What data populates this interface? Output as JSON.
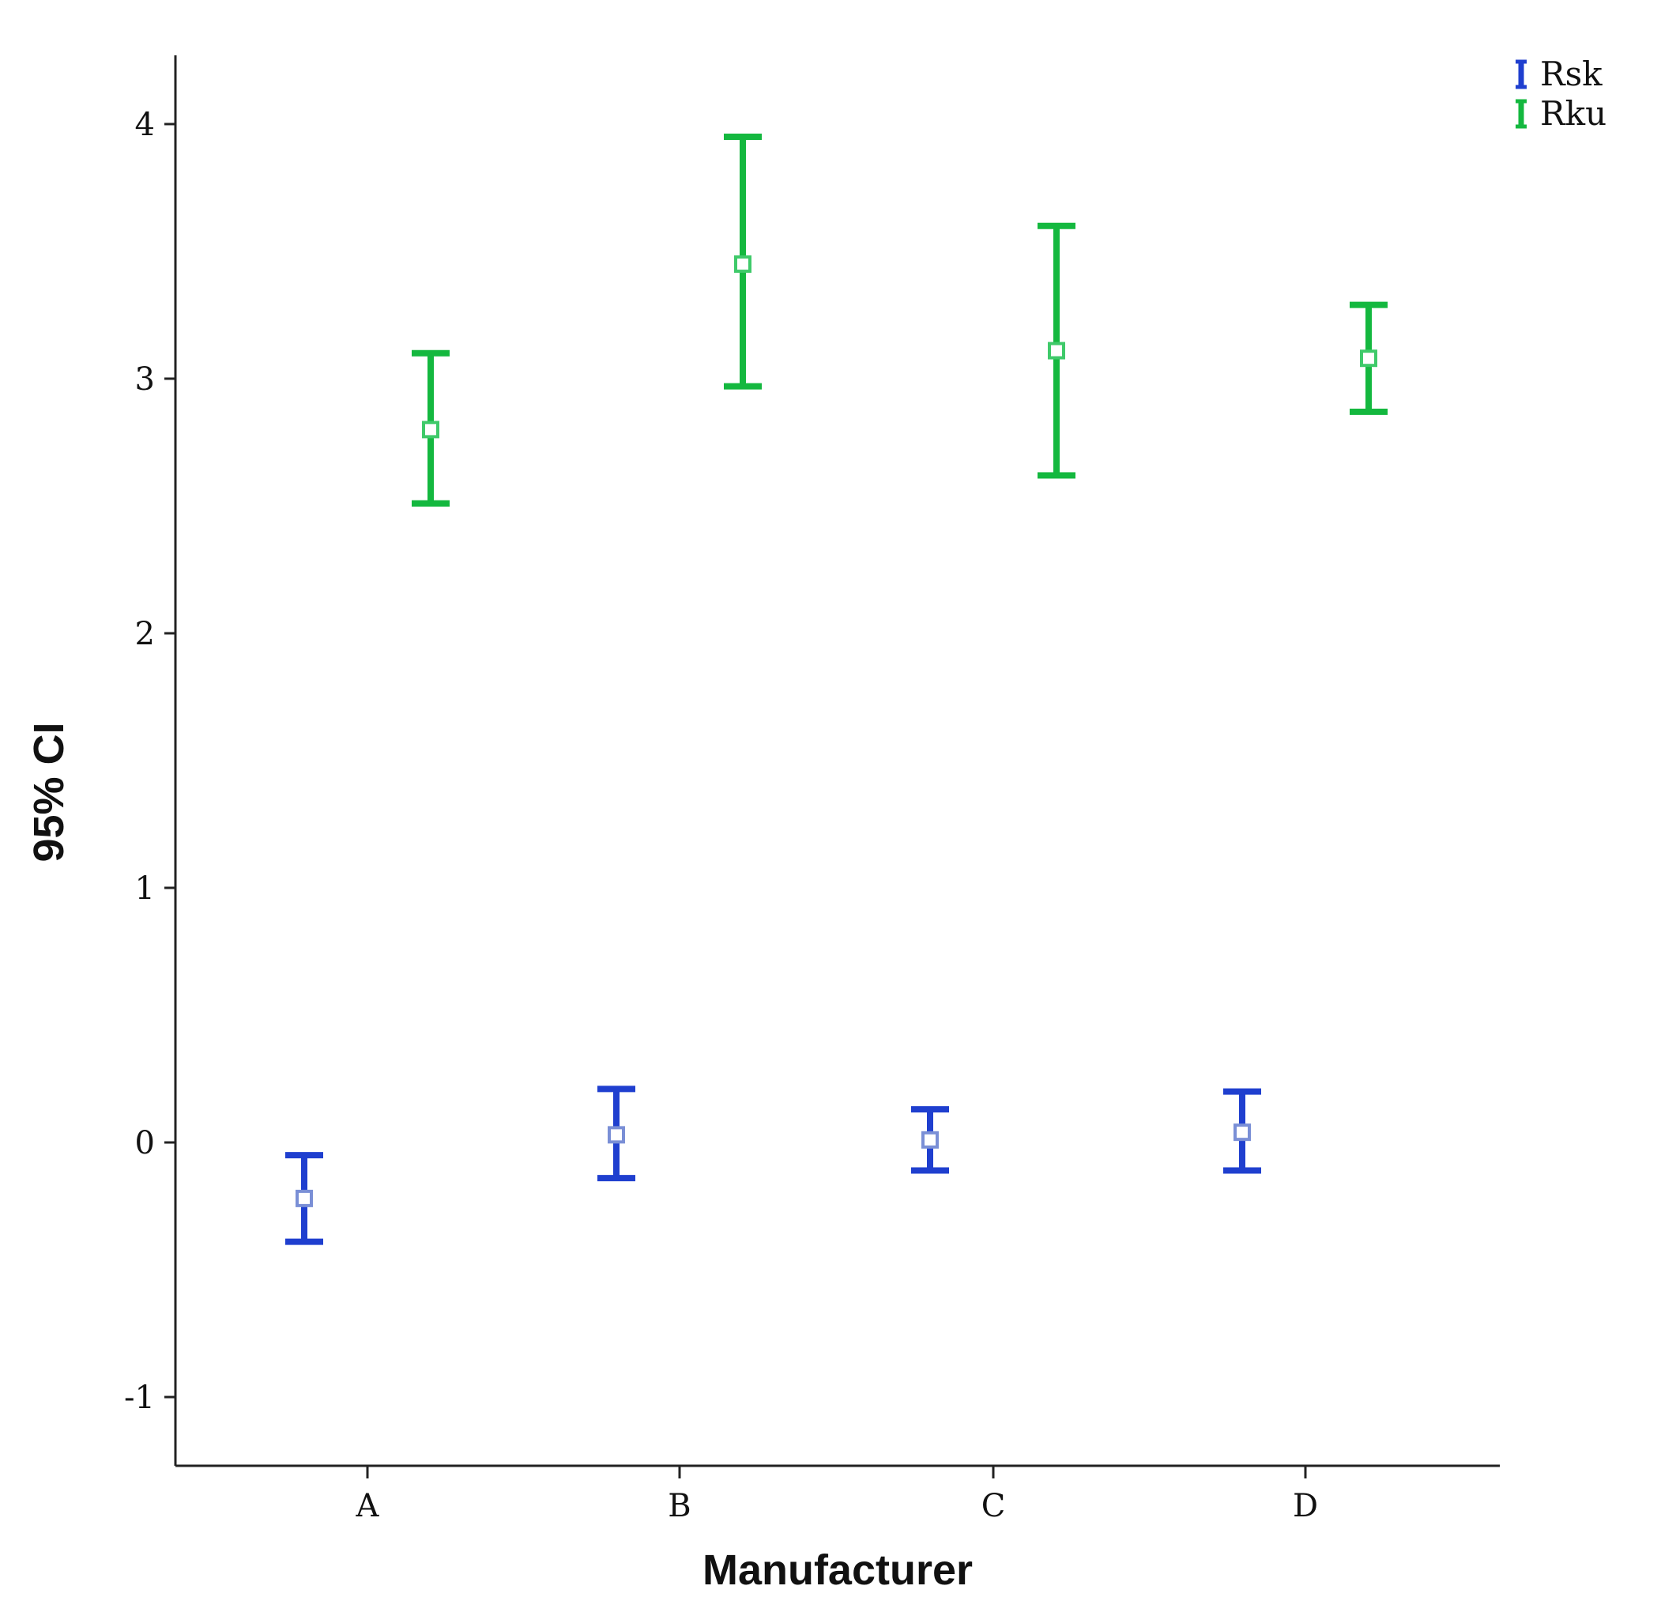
{
  "chart_data": {
    "type": "scatter",
    "subtype": "error-bar",
    "title": "",
    "xlabel": "Manufacturer",
    "ylabel": "95% CI",
    "categories": [
      "A",
      "B",
      "C",
      "D"
    ],
    "ylim": [
      -1.27,
      4.27
    ],
    "yticks": [
      -1,
      0,
      1,
      2,
      3,
      4
    ],
    "ytick_labels": [
      "-1",
      "0",
      "1",
      "2",
      "3",
      "4"
    ],
    "grid": false,
    "legend": {
      "position": "top-right"
    },
    "series": [
      {
        "name": "Rsk",
        "color": "#1f3fcf",
        "marker_color": "#7a8fd6",
        "mean": [
          -0.22,
          0.03,
          0.01,
          0.04
        ],
        "lower": [
          -0.39,
          -0.14,
          -0.11,
          -0.11
        ],
        "upper": [
          -0.05,
          0.21,
          0.13,
          0.2
        ]
      },
      {
        "name": "Rku",
        "color": "#14b83f",
        "marker_color": "#3fca6a",
        "mean": [
          2.8,
          3.45,
          3.11,
          3.08
        ],
        "lower": [
          2.51,
          2.97,
          2.62,
          2.87
        ],
        "upper": [
          3.1,
          3.95,
          3.6,
          3.29
        ]
      }
    ]
  }
}
